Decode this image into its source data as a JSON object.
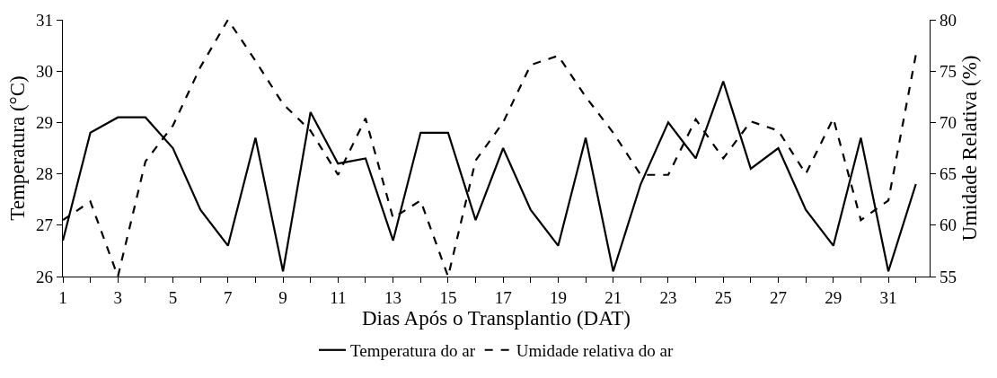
{
  "chart_data": {
    "type": "line",
    "xlabel": "Dias Após o Transplantio (DAT)",
    "ylabel": "Temperatura (°C)",
    "y2label": "Umidade Relativa (%)",
    "x": [
      1,
      2,
      3,
      4,
      5,
      6,
      7,
      8,
      9,
      10,
      11,
      12,
      13,
      14,
      15,
      16,
      17,
      18,
      19,
      20,
      21,
      22,
      23,
      24,
      25,
      26,
      27,
      28,
      29,
      30,
      31,
      32
    ],
    "series": [
      {
        "name": "Temperatura do ar",
        "color": "#000000",
        "line_style": "solid",
        "values": [
          26.7,
          28.8,
          29.1,
          29.1,
          28.5,
          27.3,
          26.6,
          28.7,
          26.1,
          29.2,
          28.2,
          28.3,
          26.7,
          28.8,
          28.8,
          27.1,
          28.5,
          27.3,
          26.6,
          28.7,
          26.1,
          27.8,
          29.0,
          28.3,
          29.8,
          28.1,
          28.5,
          27.3,
          26.6,
          28.7,
          26.1,
          27.8
        ]
      },
      {
        "name": "Umidade relativa do ar",
        "color": "#000000",
        "line_style": "dashed",
        "axis": "y2",
        "values": [
          60.5,
          62.3,
          55.0,
          66.2,
          69.7,
          75.4,
          80.0,
          76.0,
          71.8,
          69.2,
          64.9,
          70.4,
          60.7,
          62.4,
          55.0,
          66.3,
          70.0,
          75.6,
          76.5,
          72.5,
          69.0,
          64.9,
          64.9,
          70.3,
          66.5,
          70.1,
          69.2,
          65.0,
          70.4,
          60.5,
          62.4,
          76.6
        ]
      }
    ],
    "xlim": [
      1,
      32.5
    ],
    "xticks": [
      1,
      {
        "value": 2,
        "label": null
      },
      3,
      {
        "value": 4,
        "label": null
      },
      5,
      {
        "value": 6,
        "label": null
      },
      7,
      {
        "value": 8,
        "label": null
      },
      9,
      {
        "value": 10,
        "label": null
      },
      11,
      {
        "value": 12,
        "label": null
      },
      13,
      {
        "value": 14,
        "label": null
      },
      15,
      {
        "value": 16,
        "label": null
      },
      17,
      {
        "value": 18,
        "label": null
      },
      19,
      {
        "value": 20,
        "label": null
      },
      21,
      {
        "value": 22,
        "label": null
      },
      23,
      {
        "value": 24,
        "label": null
      },
      25,
      {
        "value": 26,
        "label": null
      },
      27,
      {
        "value": 28,
        "label": null
      },
      29,
      {
        "value": 30,
        "label": null
      },
      31,
      {
        "value": 32,
        "label": null
      }
    ],
    "ylim": [
      26,
      31
    ],
    "yticks": [
      26,
      27,
      28,
      29,
      30,
      31
    ],
    "y2lim": [
      55,
      80
    ],
    "y2ticks": [
      55,
      60,
      65,
      70,
      75,
      80
    ],
    "legend": "bottom",
    "marker": "none"
  }
}
